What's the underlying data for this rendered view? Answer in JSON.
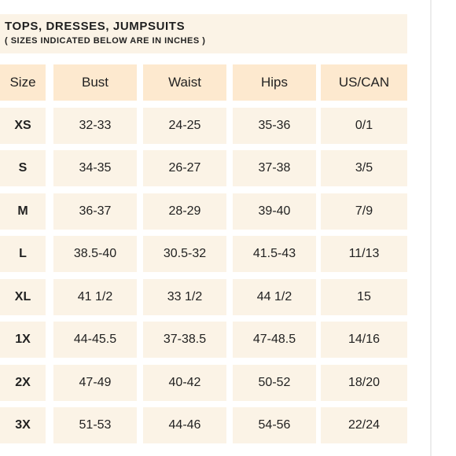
{
  "header": {
    "title": "TOPS, DRESSES, JUMPSUITS",
    "subtitle": "( SIZES INDICATED BELOW ARE IN INCHES )"
  },
  "table": {
    "columns": [
      "Size",
      "Bust",
      "Waist",
      "Hips",
      "US/CAN"
    ],
    "rows": [
      [
        "XS",
        "32-33",
        "24-25",
        "35-36",
        "0/1"
      ],
      [
        "S",
        "34-35",
        "26-27",
        "37-38",
        "3/5"
      ],
      [
        "M",
        "36-37",
        "28-29",
        "39-40",
        "7/9"
      ],
      [
        "L",
        "38.5-40",
        "30.5-32",
        "41.5-43",
        "11/13"
      ],
      [
        "XL",
        "41 1/2",
        "33 1/2",
        "44 1/2",
        "15"
      ],
      [
        "1X",
        "44-45.5",
        "37-38.5",
        "47-48.5",
        "14/16"
      ],
      [
        "2X",
        "47-49",
        "40-42",
        "50-52",
        "18/20"
      ],
      [
        "3X",
        "51-53",
        "44-46",
        "54-56",
        "22/24"
      ]
    ]
  },
  "colors": {
    "header_cell": "#fde9cf",
    "body_cell": "#fbf3e6",
    "page_background": "#ffffff",
    "text": "#222222"
  }
}
